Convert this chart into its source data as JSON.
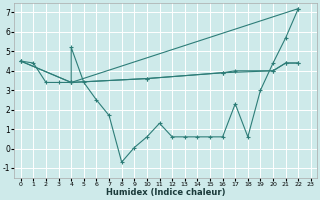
{
  "xlabel": "Humidex (Indice chaleur)",
  "bg_color": "#ceeaea",
  "grid_color": "#ffffff",
  "line_color": "#2d7d78",
  "xlim": [
    -0.5,
    23.5
  ],
  "ylim": [
    -1.5,
    7.5
  ],
  "yticks": [
    -1,
    0,
    1,
    2,
    3,
    4,
    5,
    6,
    7
  ],
  "xticks": [
    0,
    1,
    2,
    3,
    4,
    5,
    6,
    7,
    8,
    9,
    10,
    11,
    12,
    13,
    14,
    15,
    16,
    17,
    18,
    19,
    20,
    21,
    22,
    23
  ],
  "line1_x": [
    0,
    1,
    2,
    3,
    4,
    4,
    5,
    6,
    7,
    8,
    9,
    10,
    11,
    12,
    13,
    14,
    15,
    16,
    17,
    18,
    19,
    20,
    21,
    22
  ],
  "line1_y": [
    4.5,
    4.4,
    3.4,
    3.4,
    3.4,
    5.2,
    3.4,
    2.5,
    1.7,
    -0.7,
    0.05,
    0.6,
    1.3,
    0.6,
    0.6,
    0.6,
    0.6,
    0.6,
    2.3,
    0.6,
    3.0,
    4.4,
    5.7,
    7.2
  ],
  "line2_x": [
    0,
    4,
    22
  ],
  "line2_y": [
    4.5,
    3.4,
    7.2
  ],
  "line3_x": [
    0,
    4,
    10,
    16,
    20,
    21,
    22
  ],
  "line3_y": [
    4.5,
    3.4,
    3.6,
    3.9,
    4.0,
    4.4,
    4.4
  ],
  "line4_x": [
    4,
    10,
    16,
    17,
    20,
    21,
    22
  ],
  "line4_y": [
    3.4,
    3.6,
    3.9,
    4.0,
    4.0,
    4.4,
    4.4
  ]
}
